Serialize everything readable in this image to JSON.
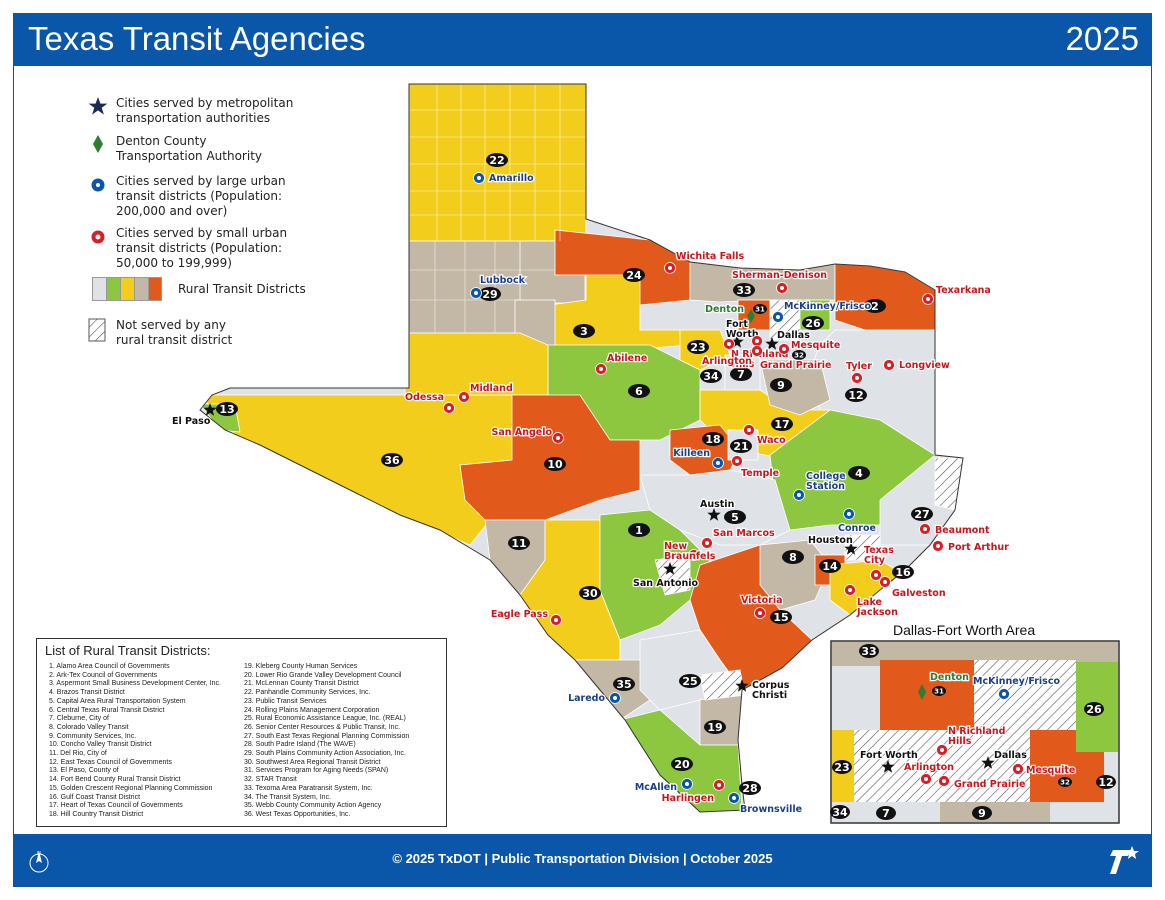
{
  "header": {
    "title": "Texas Transit Agencies",
    "year": "2025"
  },
  "legend": {
    "metro": "Cities served by metropolitan\ntransportation authorities",
    "dcta": "Denton County\nTransportation Authority",
    "large_urban": "Cities served by large urban\ntransit districts (Population:\n200,000 and over)",
    "small_urban": "Cities served by small urban\ntransit districts (Population:\n50,000 to 199,999)",
    "rural": "Rural Transit Districts",
    "not_served": "Not served by any\nrural transit district"
  },
  "colors": {
    "brand": "#0a56a8",
    "rural_grey": "#dfe2e6",
    "rural_green": "#8dc63f",
    "rural_yellow": "#f3cd1c",
    "rural_tan": "#c2b8a5",
    "rural_orange": "#e15a1b",
    "metro": "#1b2a5a",
    "dcta": "#2e7d32",
    "large_urban": "#0a56a8",
    "small_urban": "#d61f26"
  },
  "rural_list": {
    "title": "List of Rural Transit Districts:",
    "col1": [
      "1. Alamo Area Council of Governments",
      "2. Ark-Tex Council of Governments",
      "3. Aspermont Small Business Development Center, Inc.",
      "4. Brazos Transit District",
      "5. Capital Area Rural Transportation System",
      "6. Central Texas Rural Transit District",
      "7. Cleburne, City of",
      "8. Colorado Valley Transit",
      "9. Community Services, Inc.",
      "10. Concho Valley Transit District",
      "11. Del Rio, City of",
      "12. East Texas Council of Governments",
      "13. El Paso, County of",
      "14. Fort Bend County Rural Transit District",
      "15. Golden Crescent Regional Planning Commission",
      "16. Gulf Coast Transit District",
      "17. Heart of Texas Council of Governments",
      "18. Hill Country Transit District"
    ],
    "col2": [
      "19. Kleberg County Human Services",
      "20. Lower Rio Grande Valley Development Council",
      "21. McLennan County Transit District",
      "22. Panhandle Community Services, Inc.",
      "23. Public Transit Services",
      "24. Rolling Plains Management Corporation",
      "25. Rural Economic Assistance League, Inc. (REAL)",
      "26. Senior Center Resources & Public Transit, Inc.",
      "27. South East Texas Regional Planning Commission",
      "28. South Padre Island (The WAVE)",
      "29. South Plains Community Action Association, Inc.",
      "30. Southwest Area Regional Transit District",
      "31. Services Program for Aging Needs (SPAN)",
      "32. STAR Transit",
      "33. Texoma Area Paratransit System, Inc.",
      "34. The Transit System, Inc.",
      "35. Webb County Community Action Agency",
      "36. West Texas Opportunities, Inc."
    ]
  },
  "district_numbers": [
    "1",
    "2",
    "3",
    "4",
    "5",
    "6",
    "7",
    "8",
    "9",
    "10",
    "11",
    "12",
    "13",
    "14",
    "15",
    "16",
    "17",
    "18",
    "19",
    "20",
    "21",
    "22",
    "23",
    "24",
    "25",
    "26",
    "27",
    "28",
    "29",
    "30",
    "31",
    "32",
    "33",
    "34",
    "35",
    "36"
  ],
  "cities": {
    "metro": [
      "El Paso",
      "Fort\nWorth",
      "Dallas",
      "Austin",
      "Houston",
      "San Antonio",
      "Corpus\nChristi"
    ],
    "dcta": "Denton",
    "large_urban": [
      "Amarillo",
      "Lubbock",
      "McKinney/Frisco",
      "Killeen",
      "College\nStation",
      "Conroe",
      "Laredo",
      "McAllen",
      "Brownsville"
    ],
    "small_urban": [
      "Wichita Falls",
      "Sherman-Denison",
      "Texarkana",
      "Abilene",
      "Midland",
      "Odessa",
      "San Angelo",
      "N Richland\nHills",
      "Mesquite",
      "Grand Prairie",
      "Arlington",
      "Tyler",
      "Longview",
      "Waco",
      "Temple",
      "San Marcos",
      "New\nBraunfels",
      "Beaumont",
      "Port Arthur",
      "Texas\nCity",
      "Galveston",
      "Lake\nJackson",
      "Victoria",
      "Eagle Pass",
      "Harlingen"
    ]
  },
  "inset": {
    "title": "Dallas-Fort Worth Area",
    "numbers": [
      "33",
      "31",
      "26",
      "23",
      "12",
      "32",
      "34",
      "7",
      "9"
    ],
    "cities": [
      "Denton",
      "McKinney/Frisco",
      "N Richland\nHills",
      "Fort Worth",
      "Dallas",
      "Arlington",
      "Grand Prairie",
      "Mesquite"
    ]
  },
  "footer": {
    "credit": "© 2025 TxDOT | Public Transportation Division | October 2025"
  },
  "north_arrow": "N"
}
